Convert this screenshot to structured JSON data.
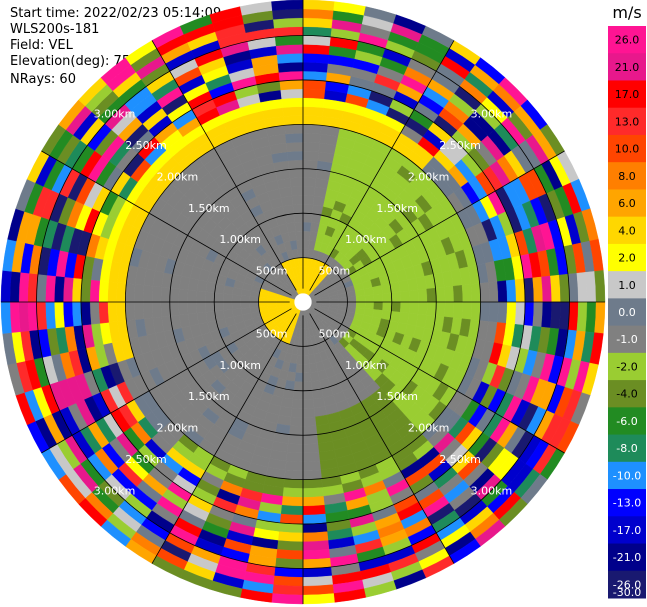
{
  "info": {
    "start_time": "Start time: 2022/02/23 05:14:09",
    "device": "WLS200s-181",
    "field": "Field: VEL",
    "elevation": "Elevation(deg): 75.00",
    "nrays": "NRays: 60"
  },
  "chart_data": {
    "type": "heatmap",
    "projection": "polar (PPI)",
    "field": "VEL",
    "unit": "m/s",
    "n_rays": 60,
    "range_rings_km": [
      0.5,
      1.0,
      1.5,
      2.0,
      2.5,
      3.0
    ],
    "range_ring_labels": [
      "500m",
      "1.00km",
      "1.50km",
      "2.00km",
      "2.50km",
      "3.00km"
    ],
    "max_range_km": 3.4,
    "radial_grid_deg": [
      0,
      30,
      60,
      90,
      120,
      150,
      180,
      210,
      240,
      270,
      300,
      330
    ],
    "colorbar": {
      "ticks": [
        26.0,
        21.0,
        17.0,
        13.0,
        10.0,
        8.0,
        6.0,
        4.0,
        2.0,
        1.0,
        0.0,
        -1.0,
        -2.0,
        -4.0,
        -6.0,
        -8.0,
        -10.0,
        -13.0,
        -17.0,
        -21.0,
        -26.0,
        -30.0
      ],
      "tick_labels": [
        "26.0",
        "21.0",
        "17.0",
        "13.0",
        "10.0",
        "8.0",
        "6.0",
        "4.0",
        "2.0",
        "1.0",
        "0.0",
        "-1.0",
        "-2.0",
        "-4.0",
        "-6.0",
        "-8.0",
        "-10.0",
        "-13.0",
        "-17.0",
        "-21.0",
        "-26.0",
        "-30.0"
      ],
      "colors": [
        "#ff1493",
        "#e8188c",
        "#ff0000",
        "#ff2a2a",
        "#ff4500",
        "#ff7f00",
        "#ffa500",
        "#ffd700",
        "#ffff00",
        "#c8c8c8",
        "#6e7b8b",
        "#808080",
        "#9acd32",
        "#6b8e23",
        "#228b22",
        "#1e8b5a",
        "#1e90ff",
        "#0000ff",
        "#0000cd",
        "#00008b",
        "#191970"
      ]
    },
    "near_field_structure": {
      "description_ranges_km": [
        [
          0.0,
          2.0
        ]
      ],
      "dominant_value_ms": 0.0,
      "sector_east_value_ms": -2.0,
      "ring_2km_value_ms": 4.0
    }
  }
}
